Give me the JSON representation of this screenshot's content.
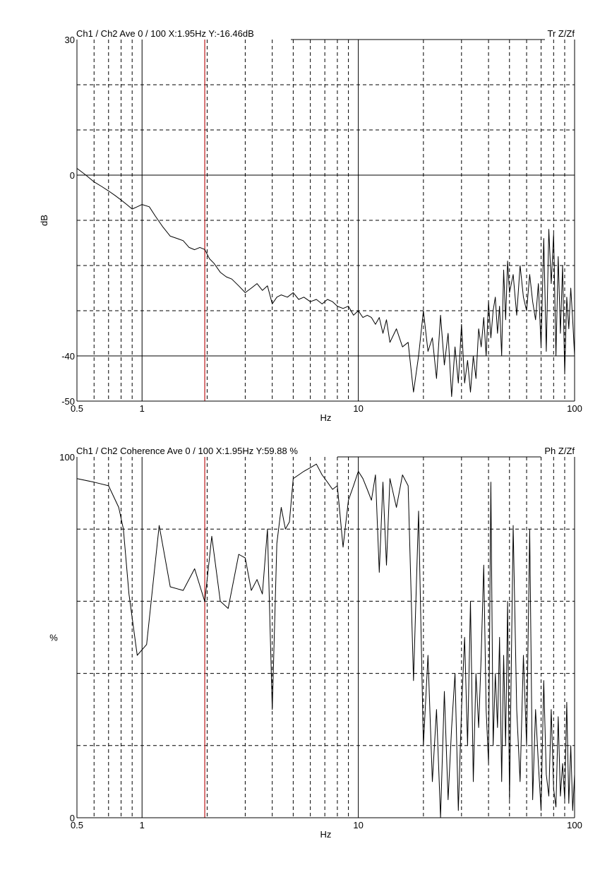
{
  "chart_data": [
    {
      "type": "line",
      "header_left": "Ch1 / Ch2  Ave 0 / 100  X:1.95Hz  Y:-16.46dB",
      "header_right": "Tr Z/Zf",
      "ylabel": "dB",
      "xlabel": "Hz",
      "x_scale": "log",
      "xlim": [
        0.5,
        100
      ],
      "ylim": [
        -50,
        30
      ],
      "x_ticks": [
        {
          "v": 0.5,
          "t": "0.5"
        },
        {
          "v": 1,
          "t": "1"
        },
        {
          "v": 10,
          "t": "10"
        },
        {
          "v": 100,
          "t": "100"
        }
      ],
      "y_ticks": [
        {
          "v": 30,
          "t": "30"
        },
        {
          "v": 0,
          "t": "0"
        },
        {
          "v": -40,
          "t": "-40"
        },
        {
          "v": -50,
          "t": "-50"
        }
      ],
      "y_grid": [
        30,
        20,
        10,
        0,
        -10,
        -20,
        -30,
        -40,
        -50
      ],
      "y_major": [
        0,
        -40
      ],
      "cursor_x": 1.95,
      "series": [
        {
          "x": [
            0.5,
            0.55,
            0.6,
            0.65,
            0.7,
            0.75,
            0.8,
            0.85,
            0.9,
            0.95,
            1.0,
            1.08,
            1.15,
            1.25,
            1.35,
            1.45,
            1.55,
            1.65,
            1.75,
            1.85,
            1.95,
            2.05,
            2.15,
            2.3,
            2.45,
            2.6,
            2.8,
            3.0,
            3.2,
            3.4,
            3.6,
            3.8,
            4.0,
            4.2,
            4.4,
            4.7,
            5.0,
            5.3,
            5.6,
            6.0,
            6.4,
            6.8,
            7.2,
            7.6,
            8.0,
            8.5,
            9.0,
            9.5,
            10.0,
            10.5,
            11.0,
            11.5,
            12.0,
            12.5,
            13.0,
            13.5,
            14.0,
            15.0,
            16.0,
            17.0,
            18.0,
            19.0,
            20.0,
            21.0,
            22.0,
            23.0,
            24.0,
            25.0,
            26.0,
            27.0,
            28.0,
            29.0,
            30.0,
            31.0,
            32.0,
            33.0,
            34.0,
            35.0,
            36.0,
            37.0,
            38.0,
            39.0,
            40.0,
            41.0,
            42.0,
            43.0,
            44.0,
            45.0,
            46.0,
            47.0,
            48.0,
            49.0,
            50.0,
            52.0,
            54.0,
            56.0,
            58.0,
            60.0,
            62.0,
            64.0,
            66.0,
            68.0,
            70.0,
            72.0,
            74.0,
            76.0,
            78.0,
            80.0,
            82.0,
            84.0,
            86.0,
            88.0,
            90.0,
            92.0,
            94.0,
            96.0,
            98.0,
            100.0
          ],
          "y": [
            1.5,
            0.0,
            -1.5,
            -2.5,
            -3.5,
            -4.5,
            -5.5,
            -6.5,
            -7.5,
            -7.0,
            -6.5,
            -7.0,
            -9.0,
            -11.5,
            -13.5,
            -14.0,
            -14.5,
            -16.0,
            -16.5,
            -16.0,
            -16.46,
            -18.5,
            -19.5,
            -21.5,
            -22.5,
            -23.0,
            -24.5,
            -26.0,
            -25.0,
            -24.0,
            -25.5,
            -24.5,
            -28.5,
            -27.0,
            -26.5,
            -27.0,
            -26.0,
            -27.5,
            -27.0,
            -28.0,
            -27.5,
            -28.5,
            -27.5,
            -28.0,
            -29.0,
            -29.5,
            -29.0,
            -31.0,
            -30.0,
            -31.5,
            -31.0,
            -31.5,
            -33.0,
            -31.5,
            -35.0,
            -32.0,
            -37.0,
            -34.0,
            -38.0,
            -37.0,
            -48.0,
            -40.0,
            -30.0,
            -39.0,
            -36.0,
            -45.0,
            -31.0,
            -42.0,
            -35.0,
            -49.0,
            -38.0,
            -46.0,
            -33.0,
            -46.0,
            -41.0,
            -48.0,
            -40.0,
            -45.0,
            -34.0,
            -38.0,
            -31.5,
            -40.0,
            -28.0,
            -36.0,
            -30.0,
            -27.0,
            -35.0,
            -29.0,
            -40.0,
            -21.0,
            -32.0,
            -19.0,
            -26.0,
            -22.0,
            -31.0,
            -20.0,
            -27.0,
            -30.0,
            -22.0,
            -28.0,
            -32.0,
            -24.0,
            -38.0,
            -14.0,
            -39.0,
            -12.0,
            -24.0,
            -13.0,
            -40.0,
            -18.0,
            -35.0,
            -20.0,
            -44.0,
            -27.0,
            -34.0,
            -25.0,
            -32.0,
            -40.0
          ]
        }
      ]
    },
    {
      "type": "line",
      "header_left": "Ch1 / Ch2  Coherence Ave 0 / 100  X:1.95Hz  Y:59.88 %",
      "header_right": "Ph Z/Zf",
      "ylabel": "%",
      "xlabel": "Hz",
      "x_scale": "log",
      "xlim": [
        0.5,
        100
      ],
      "ylim": [
        0,
        100
      ],
      "x_ticks": [
        {
          "v": 0.5,
          "t": "0.5"
        },
        {
          "v": 1,
          "t": "1"
        },
        {
          "v": 10,
          "t": "10"
        },
        {
          "v": 100,
          "t": "100"
        }
      ],
      "y_ticks": [
        {
          "v": 100,
          "t": "100"
        },
        {
          "v": 0,
          "t": "0"
        }
      ],
      "y_grid": [
        100,
        80,
        60,
        40,
        20,
        0
      ],
      "y_major": [],
      "cursor_x": 1.95,
      "series": [
        {
          "x": [
            0.5,
            0.6,
            0.7,
            0.78,
            0.82,
            0.87,
            0.95,
            1.05,
            1.2,
            1.35,
            1.55,
            1.75,
            1.95,
            2.1,
            2.3,
            2.5,
            2.8,
            3.0,
            3.2,
            3.4,
            3.6,
            3.8,
            4.0,
            4.2,
            4.4,
            4.6,
            4.8,
            5.0,
            5.3,
            5.6,
            6.0,
            6.4,
            6.8,
            7.2,
            7.6,
            8.0,
            8.5,
            9.0,
            9.5,
            10.0,
            10.5,
            11.0,
            11.5,
            12.0,
            12.5,
            13.0,
            13.5,
            14.0,
            15.0,
            16.0,
            17.0,
            18.0,
            19.0,
            20.0,
            21.0,
            22.0,
            23.0,
            24.0,
            25.0,
            26.0,
            27.0,
            28.0,
            29.0,
            30.0,
            31.0,
            32.0,
            33.0,
            34.0,
            35.0,
            36.0,
            37.0,
            38.0,
            39.0,
            40.0,
            41.0,
            42.0,
            43.0,
            44.0,
            45.0,
            46.0,
            47.0,
            48.0,
            49.0,
            50.0,
            52.0,
            54.0,
            56.0,
            58.0,
            60.0,
            62.0,
            64.0,
            66.0,
            68.0,
            70.0,
            72.0,
            74.0,
            76.0,
            78.0,
            80.0,
            82.0,
            84.0,
            86.0,
            88.0,
            90.0,
            92.0,
            94.0,
            96.0,
            98.0,
            100.0
          ],
          "y": [
            94,
            93,
            92,
            86,
            80,
            62,
            45,
            48,
            81,
            64,
            63,
            69,
            59.88,
            78,
            60,
            58,
            73,
            72,
            63,
            66,
            62,
            80,
            30,
            76,
            86,
            80,
            82,
            94,
            95,
            96,
            97,
            98,
            95,
            93,
            91,
            92,
            75,
            88,
            92,
            96,
            94,
            91,
            88,
            95,
            68,
            93,
            70,
            94,
            86,
            95,
            92,
            38,
            85,
            20,
            45,
            10,
            30,
            0,
            35,
            5,
            25,
            40,
            2,
            30,
            50,
            20,
            60,
            10,
            40,
            25,
            45,
            70,
            30,
            15,
            93,
            20,
            40,
            25,
            50,
            10,
            45,
            20,
            60,
            5,
            81,
            30,
            10,
            45,
            20,
            80,
            5,
            30,
            15,
            2,
            38,
            12,
            6,
            30,
            8,
            3,
            28,
            6,
            15,
            5,
            32,
            4,
            20,
            2,
            12
          ]
        }
      ]
    }
  ]
}
